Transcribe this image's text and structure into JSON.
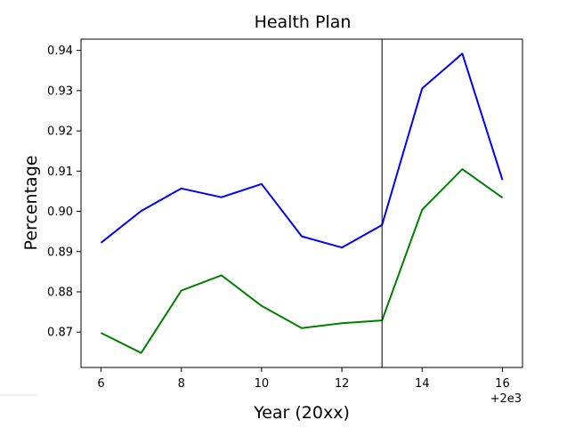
{
  "chart_data": {
    "type": "line",
    "title": "Health Plan",
    "xlabel": "Year (20xx)",
    "ylabel": "Percentage",
    "x_offset_label": "+2e3",
    "xlim": [
      5.5,
      16.5
    ],
    "ylim": [
      0.8612,
      0.9428
    ],
    "x": [
      6,
      7,
      8,
      9,
      10,
      11,
      12,
      13,
      14,
      15,
      16
    ],
    "xticks": [
      6,
      8,
      10,
      12,
      14,
      16
    ],
    "xtick_labels": [
      "6",
      "8",
      "10",
      "12",
      "14",
      "16"
    ],
    "yticks": [
      0.87,
      0.88,
      0.89,
      0.9,
      0.91,
      0.92,
      0.93,
      0.94
    ],
    "ytick_labels": [
      "0.87",
      "0.88",
      "0.89",
      "0.90",
      "0.91",
      "0.92",
      "0.93",
      "0.94"
    ],
    "vline_x": 13,
    "grid": false,
    "series": [
      {
        "color": "#0000ff",
        "values": [
          0.8922,
          0.9001,
          0.9057,
          0.9035,
          0.9068,
          0.8938,
          0.891,
          0.8966,
          0.9306,
          0.9392,
          0.9078
        ]
      },
      {
        "color": "#008000",
        "values": [
          0.8698,
          0.8648,
          0.8803,
          0.8841,
          0.8765,
          0.871,
          0.8722,
          0.8729,
          0.9004,
          0.9105,
          0.9034
        ]
      }
    ]
  }
}
